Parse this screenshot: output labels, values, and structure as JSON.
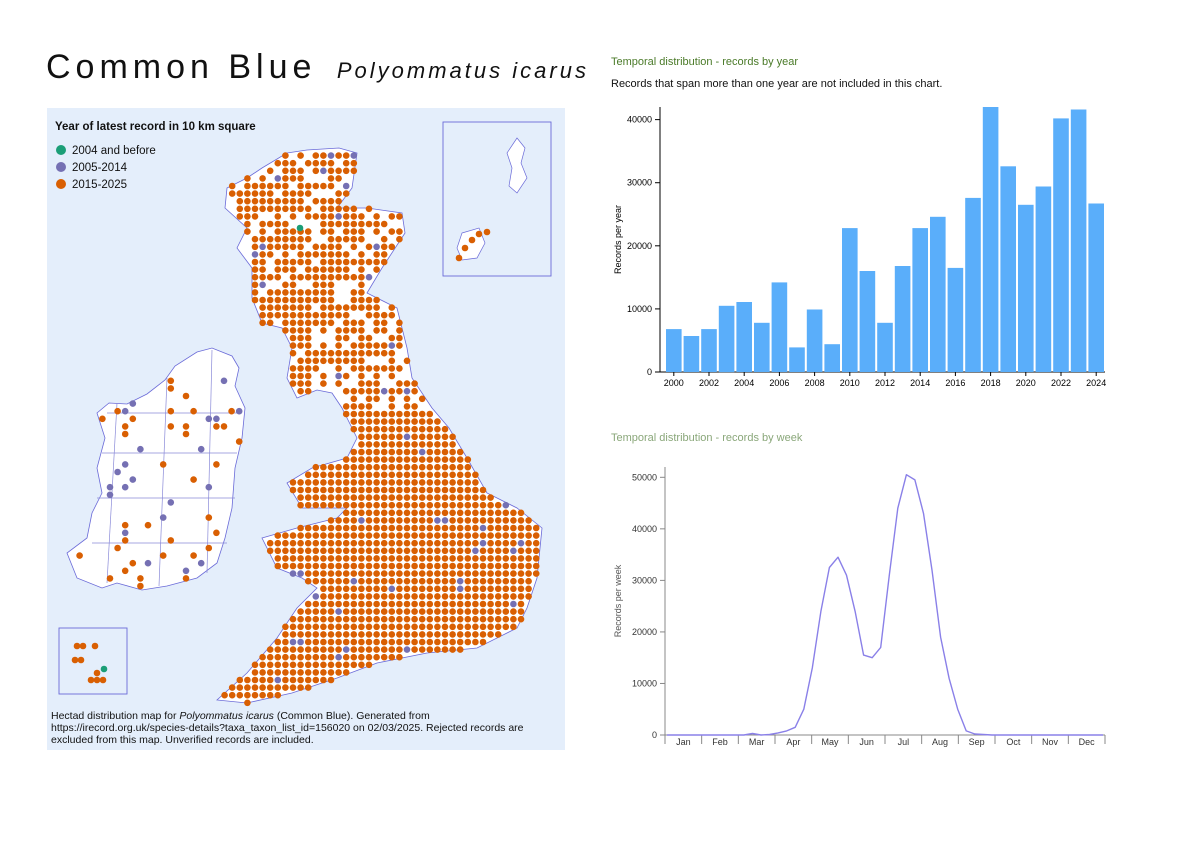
{
  "title": {
    "common": "Common Blue",
    "latin": "Polyommatus icarus"
  },
  "map": {
    "legend_title": "Year of latest record in 10 km square",
    "legend": [
      {
        "label": "2004 and before",
        "color": "#1b9e77"
      },
      {
        "label": "2005-2014",
        "color": "#7570b3"
      },
      {
        "label": "2015-2025",
        "color": "#d95f02"
      }
    ],
    "caption_prefix": "Hectad distribution map for ",
    "caption_species": "Polyommatus icarus",
    "caption_suffix": " (Common Blue). Generated from https://irecord.org.uk/species-details?taxa_taxon_list_id=156020 on 02/03/2025. Rejected records are excluded from this map. Unverified records are included."
  },
  "year_chart": {
    "title": "Temporal distribution - records by year",
    "note": "Records that span more than one year are not included in this chart."
  },
  "week_chart": {
    "title": "Temporal distribution - records by week"
  },
  "chart_data": [
    {
      "type": "bar",
      "ylabel": "Records per year",
      "ylim": [
        0,
        42000
      ],
      "yticks": [
        0,
        10000,
        20000,
        30000,
        40000
      ],
      "xtick_labels": [
        "2000",
        "2002",
        "2004",
        "2006",
        "2008",
        "2010",
        "2012",
        "2014",
        "2016",
        "2018",
        "2020",
        "2022",
        "2024"
      ],
      "categories": [
        "2000",
        "2001",
        "2002",
        "2003",
        "2004",
        "2005",
        "2006",
        "2007",
        "2008",
        "2009",
        "2010",
        "2011",
        "2012",
        "2013",
        "2014",
        "2015",
        "2016",
        "2017",
        "2018",
        "2019",
        "2020",
        "2021",
        "2022",
        "2023",
        "2024"
      ],
      "values": [
        6800,
        5700,
        6800,
        10500,
        11100,
        7800,
        14200,
        3900,
        9900,
        4400,
        22800,
        16000,
        7800,
        16800,
        22800,
        24600,
        16500,
        27600,
        42000,
        32600,
        26500,
        29400,
        40200,
        41600,
        26700
      ],
      "color": "#5aaefa"
    },
    {
      "type": "line",
      "ylabel": "Records per week",
      "ylim": [
        0,
        52000
      ],
      "yticks": [
        0,
        10000,
        20000,
        30000,
        40000,
        50000
      ],
      "months": [
        "Jan",
        "Feb",
        "Mar",
        "Apr",
        "May",
        "Jun",
        "Jul",
        "Aug",
        "Sep",
        "Oct",
        "Nov",
        "Dec"
      ],
      "x": [
        1,
        2,
        3,
        4,
        5,
        6,
        7,
        8,
        9,
        10,
        11,
        12,
        13,
        14,
        15,
        16,
        17,
        18,
        19,
        20,
        21,
        22,
        23,
        24,
        25,
        26,
        27,
        28,
        29,
        30,
        31,
        32,
        33,
        34,
        35,
        36,
        37,
        38,
        39,
        40,
        41,
        42,
        43,
        44,
        45,
        46,
        47,
        48,
        49,
        50,
        51,
        52
      ],
      "values": [
        0,
        0,
        0,
        0,
        0,
        0,
        0,
        0,
        0,
        0,
        300,
        0,
        100,
        400,
        800,
        1500,
        5000,
        13000,
        24000,
        32500,
        34500,
        31000,
        24000,
        15500,
        15000,
        17000,
        31000,
        44000,
        50500,
        49500,
        43000,
        32000,
        19000,
        11000,
        5000,
        800,
        200,
        100,
        0,
        0,
        0,
        0,
        0,
        0,
        0,
        0,
        0,
        0,
        0,
        0,
        0,
        0
      ],
      "color": "#8a80e8"
    }
  ]
}
